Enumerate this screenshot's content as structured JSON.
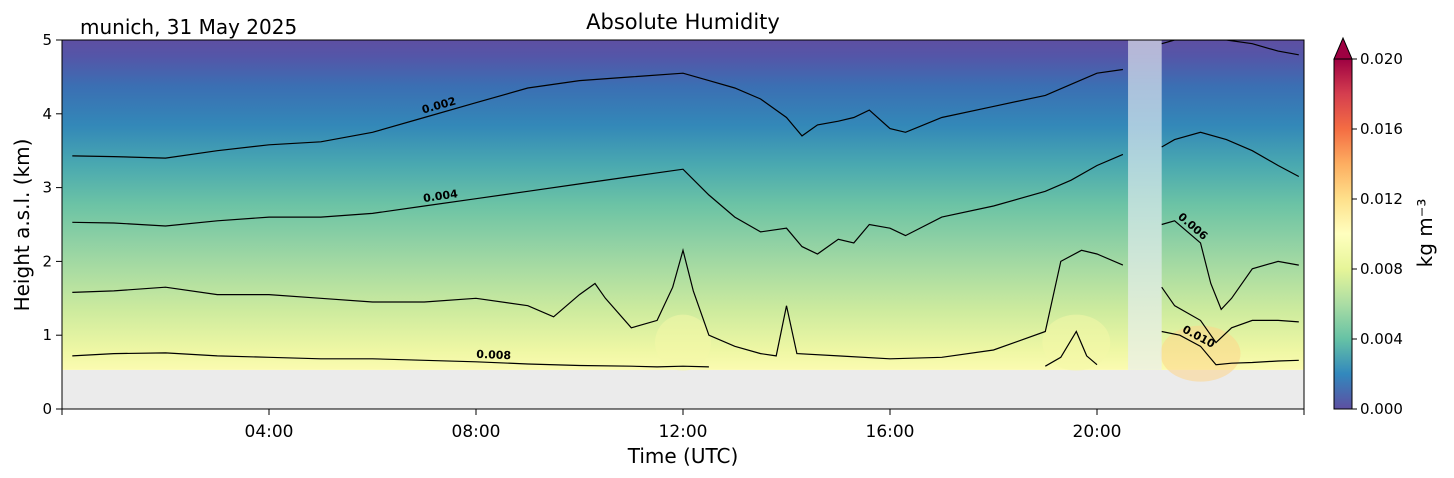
{
  "chart_data": {
    "type": "heatmap",
    "title": "Absolute Humidity",
    "subtitle": "munich, 31 May 2025",
    "xlabel": "Time (UTC)",
    "ylabel": "Height a.s.l. (km)",
    "xlim_hours": [
      0,
      24
    ],
    "ylim": [
      0,
      5
    ],
    "x_tick_hours": [
      4,
      8,
      12,
      16,
      20
    ],
    "x_tick_labels": [
      "04:00",
      "08:00",
      "12:00",
      "16:00",
      "20:00"
    ],
    "y_ticks": [
      0,
      1,
      2,
      3,
      4,
      5
    ],
    "y_tick_labels": [
      "0",
      "1",
      "2",
      "3",
      "4",
      "5"
    ],
    "ground_level_km": 0.53,
    "missing_data_hours": [
      20.6,
      21.25
    ],
    "colorbar": {
      "label": "kg m⁻³",
      "colormap": "Spectral_r",
      "range": [
        0.0,
        0.02
      ],
      "extend": "max",
      "ticks": [
        0.0,
        0.004,
        0.008,
        0.012,
        0.016,
        0.02
      ],
      "tick_labels": [
        "0.000",
        "0.004",
        "0.008",
        "0.012",
        "0.016",
        "0.020"
      ]
    },
    "contour_labels": [
      "0.002",
      "0.004",
      "0.006",
      "0.008",
      "0.010"
    ],
    "contours": [
      {
        "level": 0.002,
        "label": "0.002",
        "x": [
          0.2,
          1,
          2,
          3,
          4,
          5,
          6,
          7,
          8,
          9,
          10,
          11,
          12,
          12.5,
          13,
          13.5,
          14,
          14.3,
          14.6,
          15,
          15.3,
          15.6,
          16,
          16.3,
          17,
          18,
          19,
          19.5,
          20,
          20.5
        ],
        "y": [
          3.43,
          3.42,
          3.4,
          3.5,
          3.58,
          3.62,
          3.75,
          3.95,
          4.15,
          4.35,
          4.45,
          4.5,
          4.55,
          4.45,
          4.35,
          4.2,
          3.95,
          3.7,
          3.85,
          3.9,
          3.95,
          4.05,
          3.8,
          3.75,
          3.95,
          4.1,
          4.25,
          4.4,
          4.55,
          4.6
        ]
      },
      {
        "level": 0.002,
        "label": "",
        "x": [
          21.25,
          21.5,
          22,
          22.5,
          23,
          23.5,
          23.9
        ],
        "y": [
          4.95,
          5.0,
          5.0,
          5.0,
          4.95,
          4.85,
          4.8
        ]
      },
      {
        "level": 0.004,
        "label": "0.004",
        "x": [
          0.2,
          1,
          2,
          3,
          4,
          5,
          6,
          7,
          8,
          9,
          10,
          11,
          12,
          12.5,
          13,
          13.5,
          14,
          14.3,
          14.6,
          15,
          15.3,
          15.6,
          16,
          16.3,
          17,
          18,
          19,
          19.5,
          20,
          20.5
        ],
        "y": [
          2.53,
          2.52,
          2.48,
          2.55,
          2.6,
          2.6,
          2.65,
          2.75,
          2.85,
          2.95,
          3.05,
          3.15,
          3.25,
          2.9,
          2.6,
          2.4,
          2.45,
          2.2,
          2.1,
          2.3,
          2.25,
          2.5,
          2.45,
          2.35,
          2.6,
          2.75,
          2.95,
          3.1,
          3.3,
          3.45
        ]
      },
      {
        "level": 0.004,
        "label": "",
        "x": [
          21.25,
          21.5,
          22,
          22.5,
          23,
          23.5,
          23.9
        ],
        "y": [
          3.55,
          3.65,
          3.75,
          3.65,
          3.5,
          3.3,
          3.15
        ]
      },
      {
        "level": 0.006,
        "label": "",
        "x": [
          0.2,
          1,
          2,
          3,
          4,
          5,
          6,
          7,
          8,
          9,
          9.5,
          10,
          10.3,
          10.5,
          11,
          11.5,
          11.8,
          12,
          12.2,
          12.5,
          13,
          13.5,
          13.8,
          14,
          14.2,
          15,
          16,
          17,
          18,
          19,
          19.3,
          19.7,
          20,
          20.5
        ],
        "y": [
          1.58,
          1.6,
          1.65,
          1.55,
          1.55,
          1.5,
          1.45,
          1.45,
          1.5,
          1.4,
          1.25,
          1.55,
          1.7,
          1.5,
          1.1,
          1.2,
          1.65,
          2.15,
          1.6,
          1.0,
          0.85,
          0.75,
          0.72,
          1.4,
          0.75,
          0.72,
          0.68,
          0.7,
          0.8,
          1.05,
          2.0,
          2.15,
          2.1,
          1.95
        ]
      },
      {
        "level": 0.006,
        "label": "0.006",
        "x": [
          21.25,
          21.5,
          22,
          22.2,
          22.4,
          22.6,
          23,
          23.5,
          23.9
        ],
        "y": [
          2.5,
          2.55,
          2.25,
          1.7,
          1.35,
          1.5,
          1.9,
          2.0,
          1.95
        ]
      },
      {
        "level": 0.008,
        "label": "0.008",
        "x": [
          0.2,
          1,
          2,
          3,
          4,
          5,
          6,
          7,
          8,
          9,
          10,
          11,
          11.5,
          12,
          12.5
        ],
        "y": [
          0.72,
          0.75,
          0.76,
          0.72,
          0.7,
          0.68,
          0.68,
          0.66,
          0.64,
          0.61,
          0.59,
          0.58,
          0.57,
          0.58,
          0.57
        ]
      },
      {
        "level": 0.008,
        "label": "",
        "x": [
          19.0,
          19.3,
          19.6,
          19.8,
          20.0
        ],
        "y": [
          0.58,
          0.7,
          1.05,
          0.72,
          0.6
        ]
      },
      {
        "level": 0.008,
        "label": "",
        "x": [
          21.25,
          21.5,
          22,
          22.3,
          22.6,
          23,
          23.5,
          23.9
        ],
        "y": [
          1.65,
          1.4,
          1.2,
          0.9,
          1.1,
          1.2,
          1.2,
          1.18
        ]
      },
      {
        "level": 0.01,
        "label": "0.010",
        "x": [
          21.25,
          21.6,
          22,
          22.3,
          22.6,
          23,
          23.5,
          23.9
        ],
        "y": [
          1.05,
          1.0,
          0.85,
          0.6,
          0.62,
          0.63,
          0.65,
          0.66
        ]
      }
    ]
  }
}
